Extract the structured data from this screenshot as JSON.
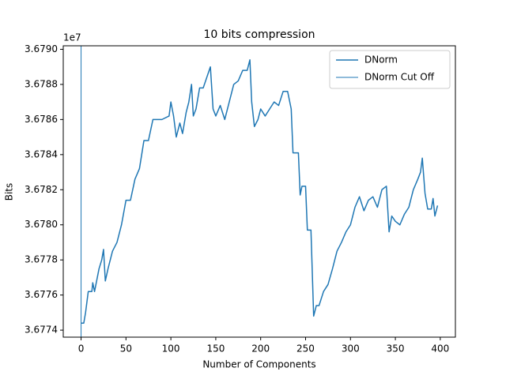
{
  "chart_data": {
    "type": "line",
    "title": "10 bits compression",
    "xlabel": "Number of Components",
    "ylabel": "Bits",
    "y_offset_label": "1e7",
    "x": [
      0,
      3,
      5,
      8,
      12,
      13,
      15,
      20,
      23,
      25,
      27,
      30,
      35,
      40,
      45,
      50,
      55,
      60,
      65,
      70,
      75,
      80,
      90,
      98,
      100,
      103,
      106,
      110,
      113,
      117,
      120,
      123,
      125,
      128,
      132,
      136,
      140,
      144,
      147,
      150,
      155,
      160,
      165,
      170,
      175,
      180,
      185,
      188,
      190,
      193,
      197,
      200,
      205,
      210,
      215,
      220,
      225,
      230,
      234,
      236,
      242,
      244,
      246,
      250,
      252,
      256,
      259,
      262,
      265,
      270,
      275,
      280,
      285,
      290,
      295,
      300,
      305,
      310,
      315,
      320,
      325,
      330,
      335,
      340,
      343,
      346,
      350,
      355,
      360,
      365,
      370,
      375,
      378,
      380,
      383,
      386,
      390,
      392,
      394,
      397
    ],
    "series": [
      {
        "name": "DNorm",
        "color": "#1f77b4",
        "values": [
          3.67744,
          3.67744,
          3.6775,
          3.67762,
          3.67762,
          3.67767,
          3.67762,
          3.67775,
          3.6778,
          3.67786,
          3.67768,
          3.67775,
          3.67785,
          3.6779,
          3.678,
          3.67814,
          3.67814,
          3.67826,
          3.67832,
          3.67848,
          3.67848,
          3.6786,
          3.6786,
          3.67862,
          3.6787,
          3.67862,
          3.6785,
          3.67858,
          3.67852,
          3.67864,
          3.6787,
          3.6788,
          3.67862,
          3.67866,
          3.67878,
          3.67878,
          3.67884,
          3.6789,
          3.67866,
          3.67862,
          3.67868,
          3.6786,
          3.6787,
          3.6788,
          3.67882,
          3.67888,
          3.67888,
          3.67894,
          3.6787,
          3.67856,
          3.6786,
          3.67866,
          3.67862,
          3.67866,
          3.6787,
          3.67868,
          3.67876,
          3.67876,
          3.67866,
          3.67841,
          3.67841,
          3.67817,
          3.67822,
          3.67822,
          3.67797,
          3.67797,
          3.67748,
          3.67754,
          3.67754,
          3.67762,
          3.67766,
          3.67775,
          3.67785,
          3.6779,
          3.67796,
          3.678,
          3.6781,
          3.67816,
          3.67808,
          3.67814,
          3.67816,
          3.6781,
          3.6782,
          3.67822,
          3.67796,
          3.67805,
          3.67802,
          3.678,
          3.67806,
          3.6781,
          3.6782,
          3.67826,
          3.6783,
          3.67838,
          3.67818,
          3.67809,
          3.67809,
          3.67815,
          3.67805,
          3.67811
        ]
      },
      {
        "name": "DNorm Cut Off",
        "color": "#1f77b4",
        "x": 0
      }
    ],
    "xlim": [
      -19.85,
      416.85
    ],
    "xticks": [
      0,
      50,
      100,
      150,
      200,
      250,
      300,
      350,
      400
    ],
    "ylim": [
      3.67736,
      3.67902
    ],
    "yticks": [
      {
        "value": 3.6774,
        "label": "3.6774"
      },
      {
        "value": 3.6776,
        "label": "3.6776"
      },
      {
        "value": 3.6778,
        "label": "3.6778"
      },
      {
        "value": 3.678,
        "label": "3.6780"
      },
      {
        "value": 3.6782,
        "label": "3.6782"
      },
      {
        "value": 3.6784,
        "label": "3.6784"
      },
      {
        "value": 3.6786,
        "label": "3.6786"
      },
      {
        "value": 3.6788,
        "label": "3.6788"
      },
      {
        "value": 3.679,
        "label": "3.6790"
      }
    ],
    "legend": "upper right"
  }
}
